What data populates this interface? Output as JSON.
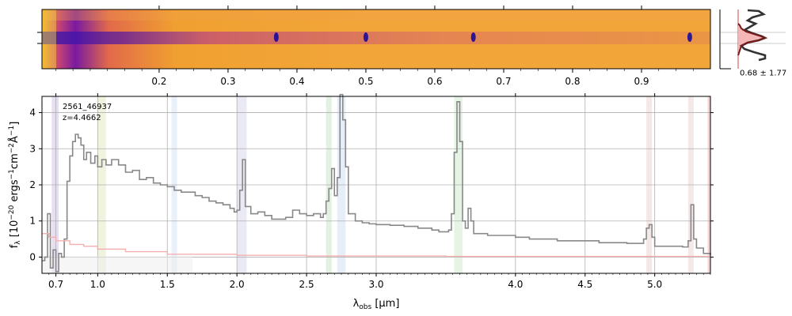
{
  "chart_data": [
    {
      "type": "heatmap",
      "name": "2D spectrum",
      "colormap": "plasma",
      "top_axis_ticks": [
        "0.2",
        "0.3",
        "0.4",
        "0.5",
        "0.6",
        "0.7",
        "0.8",
        "0.9"
      ],
      "emission_lines_um": [
        0.37,
        0.5,
        0.656,
        0.97
      ]
    },
    {
      "type": "line",
      "name": "spatial profile",
      "annotation": "0.68 ± 1.77",
      "fill_color": "#f4b6b6",
      "line_colors": [
        "#333333",
        "#7a1a1a"
      ]
    },
    {
      "type": "line",
      "object_id": "2561_46937",
      "redshift_label": "z=4.4662",
      "xlabel": "λobs [μm]",
      "xlabel_parts": {
        "main": "λ",
        "sub": "obs",
        "tail": " [μm]"
      },
      "ylabel": "fλ [10−20 ergs−1cm−2Å−1]",
      "ylabel_parts": {
        "main": "f",
        "sub": "λ",
        "a": " [10",
        "sup1": "−20",
        "b": " ergs",
        "sup2": "−1",
        "c": "cm",
        "sup3": "−2",
        "d": "Å",
        "sup4": "−1",
        "e": "]"
      },
      "x_ticks": [
        0.7,
        1.0,
        1.5,
        2.0,
        2.5,
        3.0,
        4.0,
        4.5,
        5.0
      ],
      "x_tick_labels": [
        "0.7",
        "1.0",
        "1.5",
        "2.0",
        "2.5",
        "3.0",
        "4.0",
        "4.5",
        "5.0"
      ],
      "y_ticks": [
        0,
        1,
        2,
        3,
        4
      ],
      "y_tick_labels": [
        "0",
        "1",
        "2",
        "3",
        "4"
      ],
      "ylim": [
        -0.45,
        4.45
      ],
      "xlim": [
        0.6,
        5.4
      ],
      "grid": true,
      "series": [
        {
          "color": "#888888",
          "points": [
            [
              0.6,
              -0.1
            ],
            [
              0.62,
              0.0
            ],
            [
              0.64,
              1.2
            ],
            [
              0.66,
              -0.3
            ],
            [
              0.68,
              0.2
            ],
            [
              0.7,
              -0.4
            ],
            [
              0.72,
              0.1
            ],
            [
              0.74,
              0.0
            ],
            [
              0.76,
              0.5
            ],
            [
              0.78,
              2.1
            ],
            [
              0.8,
              2.8
            ],
            [
              0.82,
              3.2
            ],
            [
              0.84,
              3.4
            ],
            [
              0.86,
              3.3
            ],
            [
              0.88,
              3.1
            ],
            [
              0.9,
              2.7
            ],
            [
              0.92,
              2.9
            ],
            [
              0.95,
              2.6
            ],
            [
              0.98,
              2.8
            ],
            [
              1.0,
              2.5
            ],
            [
              1.03,
              2.7
            ],
            [
              1.06,
              2.55
            ],
            [
              1.1,
              2.7
            ],
            [
              1.15,
              2.55
            ],
            [
              1.2,
              2.35
            ],
            [
              1.25,
              2.4
            ],
            [
              1.3,
              2.15
            ],
            [
              1.35,
              2.2
            ],
            [
              1.4,
              2.05
            ],
            [
              1.45,
              2.0
            ],
            [
              1.5,
              1.95
            ],
            [
              1.55,
              1.85
            ],
            [
              1.6,
              1.8
            ],
            [
              1.65,
              1.8
            ],
            [
              1.7,
              1.7
            ],
            [
              1.75,
              1.65
            ],
            [
              1.8,
              1.55
            ],
            [
              1.85,
              1.5
            ],
            [
              1.9,
              1.45
            ],
            [
              1.95,
              1.35
            ],
            [
              1.98,
              1.25
            ],
            [
              2.0,
              1.3
            ],
            [
              2.02,
              1.85
            ],
            [
              2.04,
              2.7
            ],
            [
              2.06,
              1.4
            ],
            [
              2.1,
              1.2
            ],
            [
              2.15,
              1.25
            ],
            [
              2.2,
              1.15
            ],
            [
              2.25,
              1.05
            ],
            [
              2.3,
              1.05
            ],
            [
              2.35,
              1.1
            ],
            [
              2.4,
              1.3
            ],
            [
              2.45,
              1.2
            ],
            [
              2.5,
              1.15
            ],
            [
              2.55,
              1.2
            ],
            [
              2.6,
              1.1
            ],
            [
              2.62,
              1.2
            ],
            [
              2.64,
              1.55
            ],
            [
              2.66,
              1.9
            ],
            [
              2.68,
              2.45
            ],
            [
              2.7,
              1.7
            ],
            [
              2.72,
              2.2
            ],
            [
              2.74,
              4.5
            ],
            [
              2.76,
              3.8
            ],
            [
              2.78,
              2.5
            ],
            [
              2.8,
              1.2
            ],
            [
              2.85,
              1.0
            ],
            [
              2.9,
              0.95
            ],
            [
              2.95,
              0.92
            ],
            [
              3.0,
              0.9
            ],
            [
              3.1,
              0.88
            ],
            [
              3.2,
              0.85
            ],
            [
              3.3,
              0.8
            ],
            [
              3.4,
              0.75
            ],
            [
              3.45,
              0.7
            ],
            [
              3.5,
              0.7
            ],
            [
              3.52,
              0.75
            ],
            [
              3.54,
              1.2
            ],
            [
              3.56,
              2.9
            ],
            [
              3.58,
              4.3
            ],
            [
              3.6,
              3.2
            ],
            [
              3.62,
              1.0
            ],
            [
              3.64,
              0.8
            ],
            [
              3.66,
              1.35
            ],
            [
              3.68,
              1.0
            ],
            [
              3.7,
              0.65
            ],
            [
              3.8,
              0.6
            ],
            [
              3.9,
              0.6
            ],
            [
              4.0,
              0.55
            ],
            [
              4.1,
              0.5
            ],
            [
              4.2,
              0.5
            ],
            [
              4.3,
              0.45
            ],
            [
              4.4,
              0.45
            ],
            [
              4.5,
              0.45
            ],
            [
              4.6,
              0.4
            ],
            [
              4.7,
              0.4
            ],
            [
              4.8,
              0.38
            ],
            [
              4.9,
              0.38
            ],
            [
              4.92,
              0.5
            ],
            [
              4.94,
              0.8
            ],
            [
              4.96,
              0.9
            ],
            [
              4.98,
              0.55
            ],
            [
              5.0,
              0.3
            ],
            [
              5.1,
              0.3
            ],
            [
              5.2,
              0.28
            ],
            [
              5.24,
              0.45
            ],
            [
              5.26,
              1.45
            ],
            [
              5.28,
              0.5
            ],
            [
              5.3,
              0.25
            ],
            [
              5.35,
              0.1
            ],
            [
              5.4,
              0.05
            ]
          ]
        },
        {
          "color": "#f4b0b0",
          "points": [
            [
              0.6,
              0.65
            ],
            [
              0.65,
              0.55
            ],
            [
              0.7,
              0.45
            ],
            [
              0.8,
              0.35
            ],
            [
              0.9,
              0.3
            ],
            [
              1.0,
              0.22
            ],
            [
              1.2,
              0.15
            ],
            [
              1.5,
              0.08
            ],
            [
              2.0,
              0.05
            ],
            [
              2.5,
              0.03
            ],
            [
              3.0,
              0.03
            ],
            [
              3.5,
              0.02
            ],
            [
              4.0,
              0.02
            ],
            [
              4.5,
              0.02
            ],
            [
              5.0,
              0.02
            ],
            [
              5.4,
              0.02
            ]
          ]
        }
      ],
      "shaded_bands_um": [
        {
          "x0": 0.67,
          "x1": 0.72,
          "color": "#d8c8ec"
        },
        {
          "x0": 1.0,
          "x1": 1.06,
          "color": "#e6ecc8"
        },
        {
          "x0": 1.53,
          "x1": 1.57,
          "color": "#dbe6f5"
        },
        {
          "x0": 2.0,
          "x1": 2.07,
          "color": "#dcdcec"
        },
        {
          "x0": 2.64,
          "x1": 2.68,
          "color": "#cfe8cf"
        },
        {
          "x0": 2.72,
          "x1": 2.78,
          "color": "#d6e2f2"
        },
        {
          "x0": 3.56,
          "x1": 3.62,
          "color": "#d6ecd6"
        },
        {
          "x0": 4.94,
          "x1": 4.98,
          "color": "#eed8d8"
        },
        {
          "x0": 5.24,
          "x1": 5.28,
          "color": "#eed8d8"
        },
        {
          "x0": 5.38,
          "x1": 5.4,
          "color": "#f2b8b8"
        }
      ]
    }
  ]
}
